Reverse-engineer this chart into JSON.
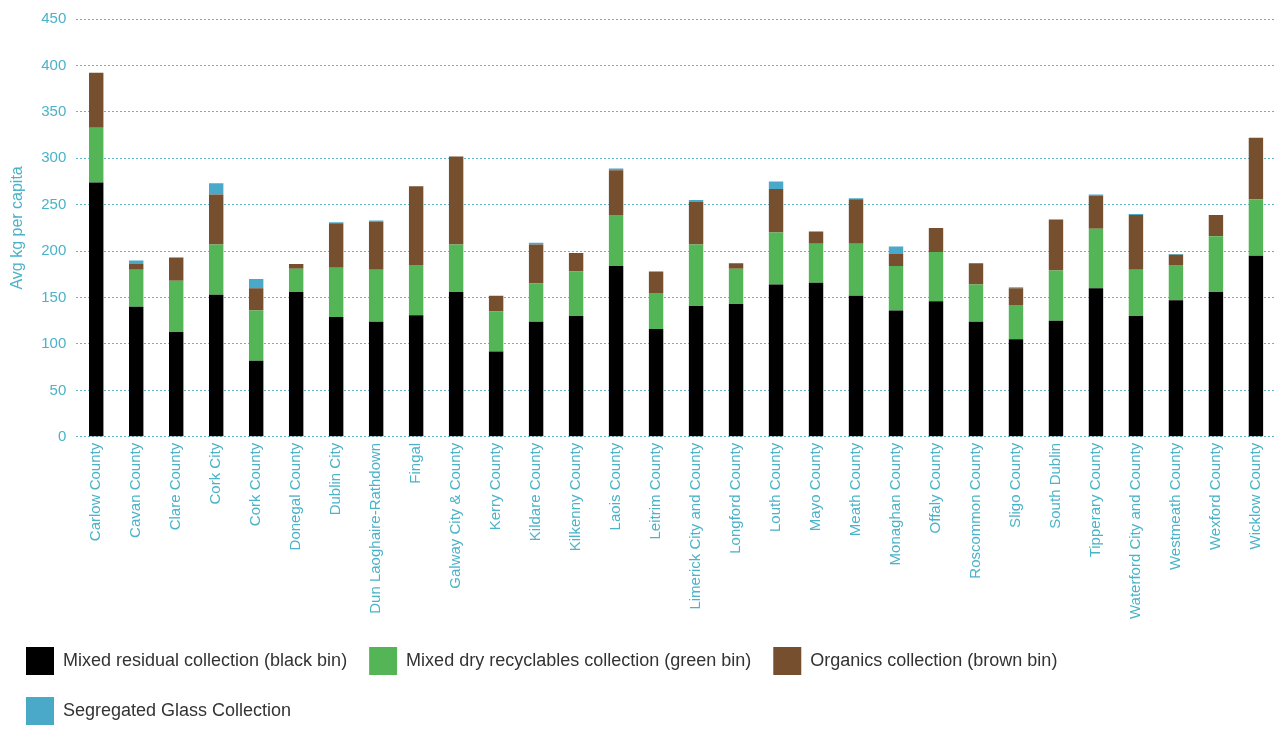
{
  "chart_data": {
    "type": "bar",
    "stacked": true,
    "ylabel": "Avg kg per capita",
    "categories": [
      "Carlow County",
      "Cavan County",
      "Clare County",
      "Cork City",
      "Cork County",
      "Donegal County",
      "Dublin City",
      "Dun Laoghaire-Rathdown",
      "Fingal",
      "Galway City & County",
      "Kerry County",
      "Kildare County",
      "Kilkenny County",
      "Laois County",
      "Leitrim County",
      "Limerick City and County",
      "Longford County",
      "Louth County",
      "Mayo County",
      "Meath County",
      "Monaghan County",
      "Offaly County",
      "Roscommon County",
      "Sligo County",
      "South Dublin",
      "Tipperary County",
      "Waterford City and County",
      "Westmeath County",
      "Wexford County",
      "Wicklow County"
    ],
    "series": [
      {
        "name": "Mixed residual collection (black bin)",
        "color": "#000000",
        "values": [
          274,
          140,
          113,
          153,
          82,
          156,
          129,
          124,
          131,
          156,
          92,
          124,
          130,
          184,
          116,
          141,
          143,
          164,
          166,
          152,
          136,
          146,
          124,
          105,
          125,
          160,
          130,
          147,
          156,
          195
        ]
      },
      {
        "name": "Mixed dry recyclables collection (green bin)",
        "color": "#53b556",
        "values": [
          59,
          40,
          55,
          54,
          54,
          25,
          53,
          56,
          54,
          51,
          43,
          41,
          48,
          55,
          39,
          66,
          38,
          56,
          42,
          56,
          48,
          53,
          40,
          37,
          54,
          64,
          50,
          38,
          60,
          61
        ]
      },
      {
        "name": "Organics collection (brown bin)",
        "color": "#754f2e",
        "values": [
          59,
          6,
          25,
          54,
          24,
          5,
          48,
          52,
          85,
          95,
          17,
          42,
          20,
          48,
          23,
          46,
          6,
          47,
          13,
          48,
          13,
          26,
          23,
          18,
          55,
          36,
          59,
          11,
          23,
          66
        ]
      },
      {
        "name": "Segregated Glass Collection",
        "color": "#4aa9c9",
        "values": [
          0,
          4,
          0,
          12,
          10,
          0,
          1,
          1,
          0,
          0,
          0,
          2,
          0,
          2,
          0,
          2,
          0,
          8,
          0,
          1,
          8,
          0,
          0,
          1,
          0,
          1,
          1,
          1,
          0,
          0
        ]
      }
    ],
    "ylim": [
      0,
      450
    ],
    "yticks": [
      0,
      50,
      100,
      150,
      200,
      250,
      300,
      350,
      400,
      450
    ],
    "grid": "y",
    "legend": "bottom"
  }
}
